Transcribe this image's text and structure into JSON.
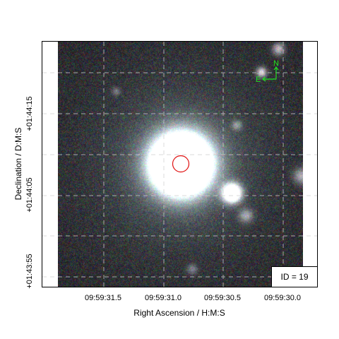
{
  "figure": {
    "id_label": "ID = 19",
    "compass": {
      "north": "N",
      "east": "E",
      "color": "#22dd22"
    },
    "marker": {
      "shape": "circle",
      "color": "#e01010"
    },
    "grid": "dashed",
    "x_axis": {
      "label": "Right Ascension / H:M:S",
      "ticks": [
        "09:59:31.5",
        "09:59:31.0",
        "09:59:30.5",
        "09:59:30.0"
      ]
    },
    "y_axis": {
      "label": "Declination / D:M:S",
      "ticks": [
        "+01:44:15",
        "+01:44:05",
        "+01:43:55"
      ]
    }
  }
}
